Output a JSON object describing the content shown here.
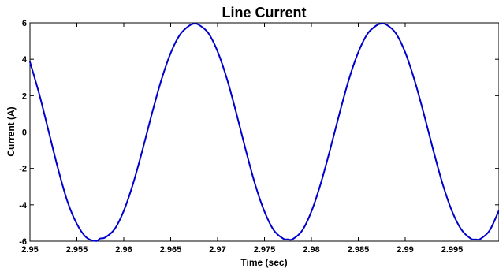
{
  "chart_data": {
    "type": "line",
    "title": "Line Current",
    "xlabel": "Time (sec)",
    "ylabel": "Current (A)",
    "xlim": [
      2.95,
      3.0
    ],
    "ylim": [
      -6,
      6
    ],
    "x_ticks": [
      2.95,
      2.955,
      2.96,
      2.965,
      2.97,
      2.975,
      2.98,
      2.985,
      2.99,
      2.995
    ],
    "x_tick_labels": [
      "2.95",
      "2.955",
      "2.96",
      "2.965",
      "2.97",
      "2.975",
      "2.98",
      "2.985",
      "2.99",
      "2.995"
    ],
    "y_ticks": [
      -6,
      -4,
      -2,
      0,
      2,
      4,
      6
    ],
    "y_tick_labels": [
      "-6",
      "-4",
      "-2",
      "0",
      "2",
      "4",
      "6"
    ],
    "grid": false,
    "colors": {
      "line": "#0000cc",
      "axes": "#000000"
    },
    "series": [
      {
        "x": [
          2.95,
          2.951,
          2.952,
          2.953,
          2.954,
          2.955,
          2.956,
          2.957,
          2.9575,
          2.958,
          2.959,
          2.96,
          2.961,
          2.962,
          2.963,
          2.964,
          2.965,
          2.966,
          2.967,
          2.9675,
          2.968,
          2.969,
          2.97,
          2.971,
          2.972,
          2.973,
          2.974,
          2.975,
          2.976,
          2.977,
          2.9775,
          2.978,
          2.979,
          2.98,
          2.981,
          2.982,
          2.983,
          2.984,
          2.985,
          2.986,
          2.987,
          2.9875,
          2.988,
          2.989,
          2.99,
          2.991,
          2.992,
          2.993,
          2.994,
          2.995,
          2.996,
          2.997,
          2.9975,
          2.998,
          2.999,
          3.0
        ],
        "y": [
          3.85,
          2.07,
          0.02,
          -2.03,
          -3.82,
          -5.05,
          -5.79,
          -5.99,
          -5.85,
          -5.8,
          -5.35,
          -4.33,
          -2.83,
          -0.98,
          1.01,
          2.85,
          4.34,
          5.36,
          5.85,
          5.95,
          5.89,
          5.45,
          4.43,
          2.92,
          1.04,
          -0.98,
          -2.87,
          -4.37,
          -5.4,
          -5.86,
          -5.9,
          -5.89,
          -5.43,
          -4.37,
          -2.83,
          -0.96,
          1.03,
          2.89,
          4.38,
          5.41,
          5.88,
          5.95,
          5.9,
          5.43,
          4.38,
          2.84,
          0.98,
          -1.01,
          -2.87,
          -4.36,
          -5.37,
          -5.86,
          -5.9,
          -5.88,
          -5.41,
          -4.3
        ]
      }
    ]
  }
}
